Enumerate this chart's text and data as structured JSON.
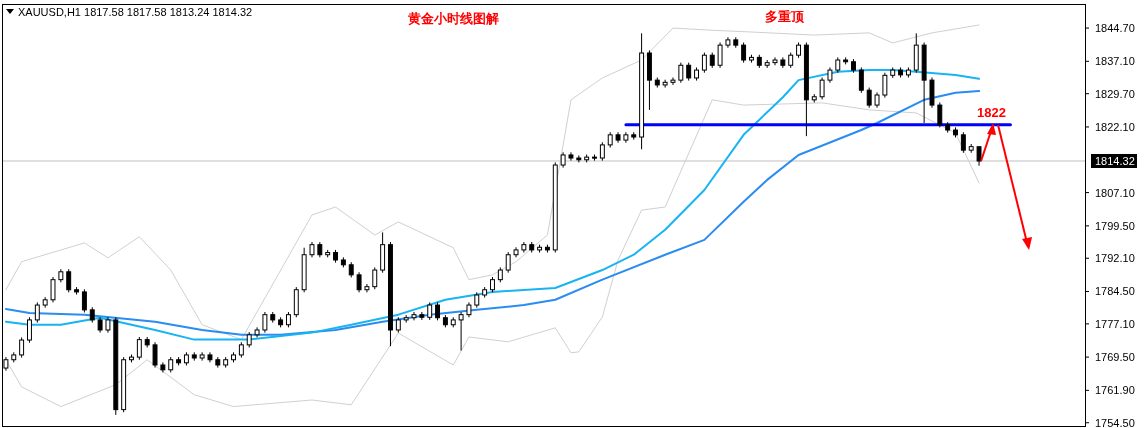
{
  "chart_data": {
    "type": "candlestick",
    "title": "XAUUSD,H1  1817.58 1817.58 1813.24 1814.32",
    "annotations": [
      "黄金小时线图解",
      "多重顶",
      "1822"
    ],
    "tick_labels": "y",
    "categories": [
      null,
      null,
      null,
      null,
      null,
      null,
      null,
      null,
      null,
      null,
      null,
      null,
      null,
      null,
      null,
      null,
      null,
      null,
      null,
      null,
      null,
      null,
      null,
      null,
      null,
      null,
      null,
      null,
      null,
      null,
      null,
      null,
      null,
      null,
      null,
      null,
      null,
      null,
      null,
      null,
      null,
      null,
      null,
      null,
      null,
      null,
      null,
      null,
      null,
      null,
      null,
      null,
      null,
      null,
      null,
      null,
      null,
      null,
      null,
      null,
      null,
      null,
      null,
      null,
      null,
      null,
      null,
      null,
      null,
      null,
      null,
      null,
      null,
      null,
      null,
      null,
      null,
      null,
      null,
      null,
      null,
      null,
      null,
      null,
      null,
      null,
      null,
      null,
      null,
      null,
      null,
      null,
      null,
      null,
      null,
      null,
      null,
      null,
      null,
      null,
      null,
      null,
      null,
      null,
      null,
      null,
      null,
      null,
      null,
      null,
      null,
      null,
      null,
      null,
      null,
      null,
      null,
      null,
      null,
      null,
      null,
      null,
      null,
      null,
      null,
      null,
      null,
      null,
      null,
      null,
      null,
      null,
      null,
      null,
      null,
      null,
      null,
      null
    ],
    "ohlc": [
      [
        1767.0,
        1769.5,
        1766.4,
        1768.9
      ],
      [
        1768.9,
        1770.6,
        1768.3,
        1770.0
      ],
      [
        1770.0,
        1774.0,
        1769.4,
        1773.4
      ],
      [
        1773.4,
        1778.6,
        1772.8,
        1778.0
      ],
      [
        1778.0,
        1782.0,
        1777.4,
        1781.4
      ],
      [
        1781.4,
        1783.2,
        1780.8,
        1782.6
      ],
      [
        1782.6,
        1787.8,
        1782.0,
        1787.2
      ],
      [
        1787.2,
        1789.6,
        1786.6,
        1789.0
      ],
      [
        1789.0,
        1789.6,
        1784.3,
        1784.9
      ],
      [
        1784.9,
        1785.5,
        1783.8,
        1784.4
      ],
      [
        1784.4,
        1785.0,
        1779.7,
        1780.3
      ],
      [
        1780.3,
        1780.9,
        1777.4,
        1778.0
      ],
      [
        1778.0,
        1778.6,
        1775.1,
        1775.7
      ],
      [
        1775.7,
        1778.6,
        1775.1,
        1778.0
      ],
      [
        1778.0,
        1778.6,
        1756.3,
        1757.5
      ],
      [
        1757.5,
        1769.5,
        1756.9,
        1768.9
      ],
      [
        1768.9,
        1770.1,
        1768.3,
        1769.5
      ],
      [
        1769.5,
        1774.1,
        1768.9,
        1773.5
      ],
      [
        1773.5,
        1774.1,
        1771.7,
        1772.3
      ],
      [
        1772.3,
        1772.9,
        1767.1,
        1767.7
      ],
      [
        1767.7,
        1768.3,
        1766.0,
        1766.6
      ],
      [
        1766.6,
        1769.5,
        1766.0,
        1768.9
      ],
      [
        1768.9,
        1769.5,
        1767.6,
        1768.2
      ],
      [
        1768.2,
        1770.6,
        1767.6,
        1770.0
      ],
      [
        1770.0,
        1770.6,
        1768.7,
        1769.3
      ],
      [
        1769.3,
        1770.6,
        1768.7,
        1770.0
      ],
      [
        1770.0,
        1770.6,
        1768.3,
        1768.9
      ],
      [
        1768.9,
        1769.5,
        1767.1,
        1767.7
      ],
      [
        1767.7,
        1769.5,
        1767.1,
        1768.9
      ],
      [
        1768.9,
        1770.6,
        1768.3,
        1770.0
      ],
      [
        1770.0,
        1772.9,
        1769.4,
        1772.3
      ],
      [
        1772.3,
        1775.2,
        1771.7,
        1774.6
      ],
      [
        1774.6,
        1776.3,
        1774.0,
        1775.7
      ],
      [
        1775.7,
        1779.8,
        1775.1,
        1779.2
      ],
      [
        1779.2,
        1779.8,
        1777.4,
        1778.0
      ],
      [
        1778.0,
        1778.6,
        1776.3,
        1776.9
      ],
      [
        1776.9,
        1779.8,
        1776.3,
        1779.2
      ],
      [
        1779.2,
        1785.5,
        1778.6,
        1784.9
      ],
      [
        1784.9,
        1794.5,
        1784.3,
        1792.9
      ],
      [
        1792.9,
        1795.8,
        1792.3,
        1795.2
      ],
      [
        1795.2,
        1795.8,
        1792.3,
        1792.9
      ],
      [
        1792.9,
        1794.0,
        1792.3,
        1793.4
      ],
      [
        1793.4,
        1794.0,
        1791.1,
        1791.7
      ],
      [
        1791.7,
        1792.3,
        1790.0,
        1790.6
      ],
      [
        1790.6,
        1791.2,
        1787.7,
        1788.3
      ],
      [
        1788.3,
        1788.9,
        1784.3,
        1784.9
      ],
      [
        1784.9,
        1786.2,
        1784.3,
        1785.6
      ],
      [
        1785.6,
        1790.0,
        1785.0,
        1789.4
      ],
      [
        1789.4,
        1798.0,
        1788.8,
        1795.2
      ],
      [
        1795.2,
        1795.8,
        1772.0,
        1775.7
      ],
      [
        1775.7,
        1778.6,
        1775.1,
        1778.0
      ],
      [
        1778.0,
        1779.1,
        1777.4,
        1778.5
      ],
      [
        1778.5,
        1779.8,
        1777.9,
        1779.2
      ],
      [
        1779.2,
        1779.8,
        1778.0,
        1778.6
      ],
      [
        1778.6,
        1782.0,
        1778.0,
        1781.4
      ],
      [
        1781.4,
        1782.0,
        1777.9,
        1778.5
      ],
      [
        1778.5,
        1779.1,
        1776.3,
        1776.9
      ],
      [
        1776.9,
        1778.6,
        1776.3,
        1778.0
      ],
      [
        1778.0,
        1779.8,
        1771.0,
        1779.2
      ],
      [
        1779.2,
        1782.0,
        1778.6,
        1781.4
      ],
      [
        1781.4,
        1784.3,
        1780.8,
        1783.7
      ],
      [
        1783.7,
        1785.5,
        1783.1,
        1784.9
      ],
      [
        1784.9,
        1787.8,
        1784.3,
        1787.2
      ],
      [
        1787.2,
        1790.0,
        1786.6,
        1789.4
      ],
      [
        1789.4,
        1793.5,
        1788.8,
        1792.9
      ],
      [
        1792.9,
        1794.6,
        1792.3,
        1794.0
      ],
      [
        1794.0,
        1795.8,
        1793.4,
        1795.2
      ],
      [
        1795.2,
        1795.8,
        1793.4,
        1794.0
      ],
      [
        1794.0,
        1795.2,
        1793.4,
        1794.6
      ],
      [
        1794.6,
        1795.2,
        1793.4,
        1794.0
      ],
      [
        1794.0,
        1814.0,
        1793.4,
        1813.4
      ],
      [
        1813.4,
        1816.3,
        1812.8,
        1815.7
      ],
      [
        1815.7,
        1816.3,
        1814.4,
        1815.0
      ],
      [
        1815.0,
        1815.6,
        1814.0,
        1814.6
      ],
      [
        1814.6,
        1815.8,
        1814.0,
        1815.2
      ],
      [
        1815.2,
        1815.8,
        1814.4,
        1815.0
      ],
      [
        1815.0,
        1818.6,
        1814.4,
        1818.0
      ],
      [
        1818.0,
        1820.9,
        1817.4,
        1820.3
      ],
      [
        1820.3,
        1820.9,
        1818.5,
        1819.1
      ],
      [
        1819.1,
        1820.9,
        1818.5,
        1820.3
      ],
      [
        1820.3,
        1820.9,
        1819.2,
        1819.8
      ],
      [
        1819.8,
        1843.5,
        1817.0,
        1839.0
      ],
      [
        1839.0,
        1839.6,
        1826.0,
        1832.8
      ],
      [
        1832.8,
        1833.4,
        1831.1,
        1831.7
      ],
      [
        1831.7,
        1832.9,
        1831.1,
        1832.3
      ],
      [
        1832.3,
        1833.4,
        1831.7,
        1832.8
      ],
      [
        1832.8,
        1836.8,
        1832.2,
        1836.2
      ],
      [
        1836.2,
        1836.8,
        1832.7,
        1833.3
      ],
      [
        1833.3,
        1835.7,
        1832.7,
        1835.1
      ],
      [
        1835.1,
        1839.1,
        1834.5,
        1838.5
      ],
      [
        1838.5,
        1839.1,
        1835.6,
        1836.2
      ],
      [
        1836.2,
        1841.4,
        1835.6,
        1840.8
      ],
      [
        1840.8,
        1842.6,
        1840.2,
        1842.0
      ],
      [
        1842.0,
        1842.6,
        1840.2,
        1840.8
      ],
      [
        1840.8,
        1841.4,
        1836.8,
        1837.4
      ],
      [
        1837.4,
        1838.6,
        1836.8,
        1838.0
      ],
      [
        1838.0,
        1838.6,
        1835.6,
        1836.2
      ],
      [
        1836.2,
        1837.4,
        1835.6,
        1836.8
      ],
      [
        1836.8,
        1838.0,
        1836.2,
        1837.4
      ],
      [
        1837.4,
        1838.0,
        1835.6,
        1836.2
      ],
      [
        1836.2,
        1839.1,
        1835.6,
        1838.5
      ],
      [
        1838.5,
        1841.4,
        1837.9,
        1840.8
      ],
      [
        1840.8,
        1841.4,
        1820.0,
        1828.3
      ],
      [
        1828.3,
        1829.6,
        1827.7,
        1829.0
      ],
      [
        1829.0,
        1833.4,
        1828.4,
        1832.8
      ],
      [
        1832.8,
        1835.7,
        1832.2,
        1835.1
      ],
      [
        1835.1,
        1838.0,
        1834.5,
        1837.4
      ],
      [
        1837.4,
        1838.0,
        1836.4,
        1837.0
      ],
      [
        1837.0,
        1837.6,
        1834.5,
        1835.1
      ],
      [
        1835.1,
        1835.7,
        1829.9,
        1830.5
      ],
      [
        1830.5,
        1831.1,
        1826.5,
        1827.1
      ],
      [
        1827.1,
        1830.0,
        1826.5,
        1829.4
      ],
      [
        1829.4,
        1834.5,
        1828.8,
        1833.9
      ],
      [
        1833.9,
        1835.7,
        1833.3,
        1835.1
      ],
      [
        1835.1,
        1835.7,
        1833.4,
        1834.0
      ],
      [
        1834.0,
        1835.7,
        1833.4,
        1835.1
      ],
      [
        1835.1,
        1843.5,
        1834.5,
        1840.8
      ],
      [
        1840.8,
        1841.4,
        1823.0,
        1832.8
      ],
      [
        1832.8,
        1833.4,
        1826.5,
        1827.1
      ],
      [
        1827.1,
        1827.7,
        1822.0,
        1822.6
      ],
      [
        1822.6,
        1823.2,
        1820.8,
        1821.4
      ],
      [
        1821.4,
        1822.0,
        1819.7,
        1820.3
      ],
      [
        1820.3,
        1820.9,
        1816.2,
        1816.8
      ],
      [
        1816.8,
        1818.2,
        1816.2,
        1817.6
      ],
      [
        1817.58,
        1817.58,
        1813.24,
        1814.32
      ],
      null,
      null,
      null,
      null,
      null,
      null,
      null,
      null,
      null,
      null,
      null,
      null,
      null
    ],
    "series": [
      {
        "type": "line",
        "color": "#d0d0d0",
        "values": [
          1784.9,
          null,
          1791.3,
          null,
          null,
          null,
          null,
          null,
          null,
          null,
          1795.6,
          null,
          null,
          1792.2,
          null,
          null,
          null,
          1797.0,
          null,
          null,
          null,
          1789.4,
          null,
          null,
          null,
          1776.9,
          null,
          null,
          null,
          null,
          1773.5,
          null,
          null,
          null,
          null,
          null,
          null,
          null,
          null,
          1802.0,
          null,
          null,
          1803.8,
          null,
          null,
          null,
          null,
          1797.4,
          null,
          null,
          1800.4,
          null,
          null,
          null,
          null,
          null,
          null,
          1794.5,
          null,
          1787.2,
          null,
          null,
          1788.3,
          null,
          null,
          1791.3,
          null,
          null,
          null,
          1797.4,
          null,
          null,
          1828.3,
          null,
          null,
          null,
          1833.3,
          null,
          null,
          null,
          null,
          1837.4,
          null,
          null,
          null,
          1844.7,
          null,
          null,
          null,
          null,
          1844.2,
          null,
          null,
          null,
          null,
          1843.8,
          null,
          null,
          null,
          null,
          null,
          null,
          null,
          1843.1,
          null,
          null,
          null,
          null,
          null,
          null,
          1843.6,
          null,
          null,
          1841.3,
          null,
          null,
          null,
          null,
          1843.6,
          null,
          null,
          null,
          null,
          null,
          1845.4,
          null,
          null,
          null,
          null,
          null,
          null,
          null,
          null,
          null,
          null,
          null,
          null,
          null
        ]
      },
      {
        "type": "line",
        "color": "#d0d0d0",
        "values": [
          1768.9,
          null,
          1762.7,
          null,
          null,
          null,
          null,
          1758.2,
          null,
          null,
          null,
          null,
          null,
          null,
          1763.2,
          null,
          null,
          null,
          1768.9,
          null,
          null,
          null,
          null,
          null,
          1760.9,
          null,
          null,
          null,
          null,
          1758.2,
          null,
          null,
          null,
          null,
          null,
          null,
          null,
          null,
          null,
          1759.7,
          null,
          null,
          null,
          null,
          1758.6,
          null,
          null,
          null,
          null,
          null,
          1775.0,
          null,
          null,
          null,
          null,
          null,
          null,
          1767.7,
          null,
          1774.1,
          null,
          null,
          null,
          null,
          1773.0,
          null,
          null,
          null,
          null,
          null,
          1776.2,
          null,
          1770.5,
          1770.7,
          null,
          null,
          1778.7,
          null,
          1791.7,
          null,
          null,
          1803.1,
          null,
          null,
          1803.8,
          null,
          null,
          null,
          null,
          null,
          1828.3,
          null,
          null,
          null,
          1827.1,
          null,
          null,
          null,
          null,
          null,
          null,
          null,
          null,
          null,
          1827.6,
          null,
          null,
          null,
          null,
          null,
          1826.0,
          null,
          null,
          null,
          null,
          null,
          1825.3,
          null,
          null,
          null,
          null,
          1820.7,
          null,
          null,
          1809.3,
          null,
          null,
          null,
          null,
          null,
          null,
          null,
          null,
          null,
          null,
          null,
          null,
          null
        ]
      },
      {
        "type": "line",
        "color": "#2a8cf0",
        "values": [
          1780.5,
          null,
          null,
          1779.6,
          null,
          null,
          null,
          null,
          null,
          null,
          1779.2,
          null,
          null,
          null,
          null,
          null,
          null,
          null,
          null,
          1777.6,
          null,
          null,
          null,
          null,
          null,
          1775.7,
          null,
          null,
          null,
          null,
          1774.6,
          null,
          null,
          null,
          null,
          1774.6,
          null,
          null,
          null,
          null,
          null,
          null,
          1775.7,
          null,
          null,
          null,
          null,
          null,
          1777.6,
          null,
          null,
          null,
          null,
          null,
          1779.2,
          null,
          null,
          null,
          null,
          null,
          1780.3,
          null,
          null,
          null,
          null,
          null,
          1781.4,
          null,
          null,
          null,
          1782.6,
          null,
          null,
          null,
          null,
          null,
          1787.2,
          null,
          null,
          null,
          null,
          null,
          null,
          null,
          1792.9,
          null,
          null,
          null,
          null,
          1796.3,
          null,
          null,
          null,
          null,
          1805.0,
          null,
          null,
          1810.0,
          null,
          null,
          null,
          1815.7,
          null,
          null,
          null,
          null,
          null,
          null,
          null,
          1821.4,
          null,
          1823.0,
          null,
          null,
          null,
          null,
          null,
          1828.3,
          null,
          null,
          null,
          1829.9,
          null,
          null,
          1830.3,
          null,
          null,
          null,
          null,
          null,
          null,
          null,
          null,
          null,
          null,
          null,
          null,
          null
        ]
      },
      {
        "type": "line",
        "color": "#18b4f2",
        "values": [
          1777.6,
          null,
          null,
          1776.9,
          null,
          null,
          null,
          1776.9,
          null,
          null,
          null,
          null,
          1778.5,
          null,
          null,
          null,
          null,
          null,
          null,
          1775.7,
          null,
          null,
          null,
          null,
          1773.5,
          null,
          null,
          null,
          null,
          null,
          null,
          1773.5,
          null,
          null,
          null,
          null,
          null,
          null,
          null,
          1775.1,
          null,
          null,
          null,
          null,
          1776.9,
          null,
          null,
          null,
          null,
          null,
          1779.2,
          null,
          null,
          null,
          null,
          null,
          1782.6,
          null,
          null,
          null,
          null,
          null,
          1784.4,
          null,
          null,
          null,
          null,
          null,
          null,
          null,
          1785.3,
          null,
          null,
          null,
          null,
          null,
          1789.4,
          null,
          null,
          null,
          1792.9,
          null,
          null,
          null,
          1798.6,
          null,
          null,
          null,
          null,
          1807.7,
          null,
          null,
          null,
          null,
          1820.3,
          null,
          null,
          null,
          null,
          1828.9,
          null,
          1832.8,
          null,
          null,
          null,
          null,
          1834.7,
          null,
          null,
          null,
          1835.1,
          null,
          null,
          1835.1,
          null,
          null,
          1834.7,
          null,
          null,
          null,
          null,
          1834.0,
          null,
          null,
          1833.1,
          null,
          null,
          null,
          null,
          null,
          null,
          null,
          null,
          null,
          null,
          null,
          null,
          null
        ]
      },
      {
        "type": "line",
        "color": "#0000ff",
        "values": [
          null,
          null,
          null,
          null,
          null,
          null,
          null,
          null,
          null,
          null,
          null,
          null,
          null,
          null,
          null,
          null,
          null,
          null,
          null,
          null,
          null,
          null,
          null,
          null,
          null,
          null,
          null,
          null,
          null,
          null,
          null,
          null,
          null,
          null,
          null,
          null,
          null,
          null,
          null,
          null,
          null,
          null,
          null,
          null,
          null,
          null,
          null,
          null,
          null,
          null,
          null,
          null,
          null,
          null,
          null,
          null,
          null,
          null,
          null,
          null,
          null,
          null,
          null,
          null,
          null,
          null,
          null,
          null,
          null,
          null,
          null,
          null,
          null,
          null,
          null,
          null,
          null,
          null,
          null,
          1822.6,
          null,
          null,
          null,
          null,
          null,
          null,
          null,
          null,
          null,
          null,
          null,
          null,
          null,
          null,
          null,
          null,
          null,
          null,
          null,
          null,
          null,
          null,
          null,
          null,
          null,
          null,
          null,
          null,
          null,
          null,
          null,
          null,
          null,
          null,
          null,
          null,
          null,
          null,
          null,
          null,
          null,
          null,
          null,
          null,
          null,
          null,
          null,
          null,
          1822.6,
          null,
          null,
          null,
          null,
          null,
          null,
          null,
          null,
          null
        ]
      }
    ],
    "ref_lines": [
      {
        "axis": "y",
        "value": 1814.32,
        "label": "1814.32",
        "color": "#c0c0c0"
      }
    ],
    "ylim": [
      1753.3,
      1850.2
    ],
    "yticks": [
      {
        "value": 1844.7,
        "label": "1844.70"
      },
      {
        "value": 1837.1,
        "label": "1837.10"
      },
      {
        "value": 1829.7,
        "label": "1829.70"
      },
      {
        "value": 1822.1,
        "label": "1822.10"
      },
      {
        "value": 1807.1,
        "label": "1807.10"
      },
      {
        "value": 1799.5,
        "label": "1799.50"
      },
      {
        "value": 1792.1,
        "label": "1792.10"
      },
      {
        "value": 1784.5,
        "label": "1784.50"
      },
      {
        "value": 1777.1,
        "label": "1777.10"
      },
      {
        "value": 1769.5,
        "label": "1769.50"
      },
      {
        "value": 1761.9,
        "label": "1761.90"
      },
      {
        "value": 1754.5,
        "label": "1754.50"
      }
    ]
  }
}
